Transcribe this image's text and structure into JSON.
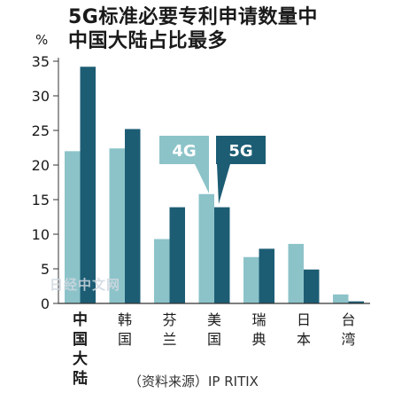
{
  "chart_data": {
    "type": "bar",
    "title_lines": [
      "5G标准必要专利申请数量中",
      "中国大陆占比最多"
    ],
    "ylabel": "%",
    "ylim": [
      0,
      35
    ],
    "yticks": [
      0,
      5,
      10,
      15,
      20,
      25,
      30,
      35
    ],
    "categories": [
      "中国大陆",
      "韩国",
      "芬兰",
      "美国",
      "瑞典",
      "日本",
      "台湾"
    ],
    "series": [
      {
        "name": "4G",
        "color": "#8cc3c9",
        "values": [
          22,
          22.4,
          9.3,
          15.8,
          6.7,
          8.6,
          1.3
        ]
      },
      {
        "name": "5G",
        "color": "#1c5d74",
        "values": [
          34.2,
          25.2,
          13.9,
          13.9,
          7.9,
          4.9,
          0.3
        ]
      }
    ],
    "source": "（资料来源）IP RITIX",
    "watermark": "日经中文网"
  }
}
